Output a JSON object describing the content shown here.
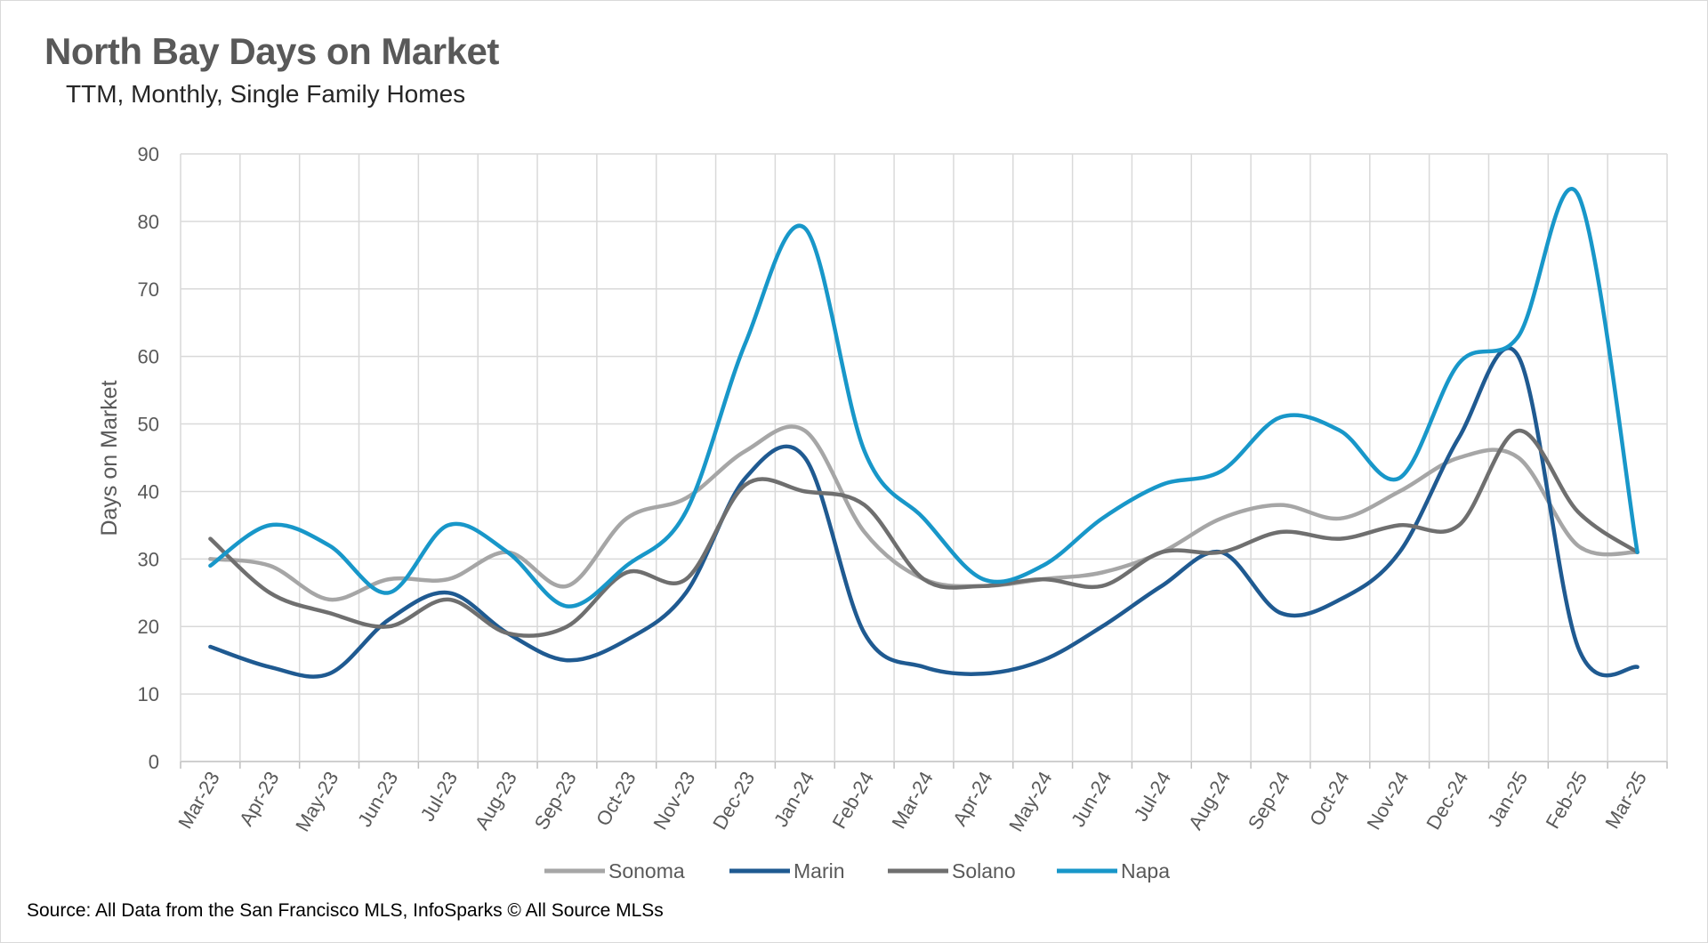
{
  "chart_data": {
    "type": "line",
    "title": "North Bay Days on Market",
    "subtitle": "TTM, Monthly, Single Family Homes",
    "xlabel": "",
    "ylabel": "Days on Market",
    "ylim": [
      0,
      90
    ],
    "yticks": [
      0,
      10,
      20,
      30,
      40,
      50,
      60,
      70,
      80,
      90
    ],
    "grid": true,
    "legend_position": "bottom",
    "categories": [
      "Mar-23",
      "Apr-23",
      "May-23",
      "Jun-23",
      "Jul-23",
      "Aug-23",
      "Sep-23",
      "Oct-23",
      "Nov-23",
      "Dec-23",
      "Jan-24",
      "Feb-24",
      "Mar-24",
      "Apr-24",
      "May-24",
      "Jun-24",
      "Jul-24",
      "Aug-24",
      "Sep-24",
      "Oct-24",
      "Nov-24",
      "Dec-24",
      "Jan-25",
      "Feb-25",
      "Mar-25"
    ],
    "series": [
      {
        "name": "Sonoma",
        "color": "#a6a6a6",
        "values": [
          30,
          29,
          24,
          27,
          27,
          31,
          26,
          36,
          39,
          46,
          49,
          34,
          27,
          26,
          27,
          28,
          31,
          36,
          38,
          36,
          40,
          45,
          45,
          32,
          31
        ]
      },
      {
        "name": "Marin",
        "color": "#1f5a91",
        "values": [
          17,
          14,
          13,
          21,
          25,
          19,
          15,
          18,
          25,
          42,
          45,
          19,
          14,
          13,
          15,
          20,
          26,
          31,
          22,
          24,
          31,
          48,
          60,
          17,
          14
        ]
      },
      {
        "name": "Solano",
        "color": "#6f6f6f",
        "values": [
          33,
          25,
          22,
          20,
          24,
          19,
          20,
          28,
          27,
          41,
          40,
          38,
          27,
          26,
          27,
          26,
          31,
          31,
          34,
          33,
          35,
          35,
          49,
          37,
          31
        ]
      },
      {
        "name": "Napa",
        "color": "#1897c9",
        "values": [
          29,
          35,
          32,
          25,
          35,
          31,
          23,
          29,
          37,
          62,
          79,
          46,
          36,
          27,
          29,
          36,
          41,
          43,
          51,
          49,
          42,
          59,
          63,
          84,
          31
        ]
      }
    ]
  },
  "source": "Source: All Data from the San Francisco MLS, InfoSparks © All Source MLSs"
}
